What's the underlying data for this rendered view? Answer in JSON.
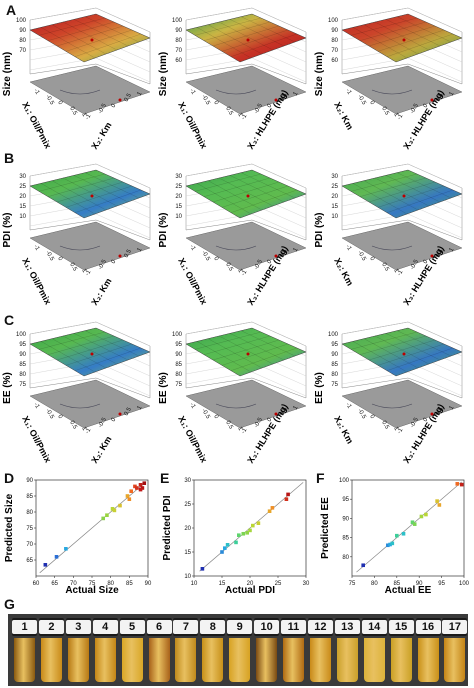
{
  "panels": {
    "A": "A",
    "B": "B",
    "C": "C",
    "D": "D",
    "E": "E",
    "F": "F",
    "G": "G"
  },
  "surfaces": [
    {
      "id": "a1",
      "response": "Size (nm)",
      "ylabel": "Size\n(nm)",
      "x1": "X₁: Oil/Pmix",
      "x2": "X₂: Km",
      "ticks_z": [
        "100",
        "90",
        "80",
        "70"
      ],
      "palette": "warm"
    },
    {
      "id": "a2",
      "response": "Size (nm)",
      "x1": "X₁: Oil/Pmix",
      "x2": "X₃: HLHPE (mg)",
      "ticks_z": [
        "100",
        "90",
        "80",
        "70",
        "60"
      ],
      "palette": "warm"
    },
    {
      "id": "a3",
      "response": "Size (nm)",
      "x1": "X₂: Km",
      "x2": "X₃: HLHPE (mg)",
      "ticks_z": [
        "100",
        "90",
        "80",
        "70",
        "60"
      ],
      "palette": "warm"
    },
    {
      "id": "b1",
      "response": "PDI (%)",
      "x1": "X₁: Oil/Pmix",
      "x2": "X₂: Km",
      "ticks_z": [
        "30",
        "25",
        "20",
        "15",
        "10"
      ],
      "palette": "cool"
    },
    {
      "id": "b2",
      "response": "PDI (%)",
      "x1": "X₁: Oil/Pmix",
      "x2": "X₃: HLHPE (mg)",
      "ticks_z": [
        "30",
        "25",
        "20",
        "15",
        "10"
      ],
      "palette": "cool"
    },
    {
      "id": "b3",
      "response": "PDI (%)",
      "x1": "X₂: Km",
      "x2": "X₃: HLHPE (mg)",
      "ticks_z": [
        "30",
        "25",
        "20",
        "15",
        "10"
      ],
      "palette": "cool"
    },
    {
      "id": "c1",
      "response": "EE (%)",
      "x1": "X₁: Oil/Pmix",
      "x2": "X₂: Km",
      "ticks_z": [
        "100",
        "95",
        "90",
        "85",
        "80",
        "75"
      ],
      "palette": "cool"
    },
    {
      "id": "c2",
      "response": "EE (%)",
      "x1": "X₁: Oil/Pmix",
      "x2": "X₃: HLHPE (mg)",
      "ticks_z": [
        "100",
        "95",
        "90",
        "85",
        "80",
        "75"
      ],
      "palette": "cool"
    },
    {
      "id": "c3",
      "response": "EE (%)",
      "x1": "X₂: Km",
      "x2": "X₃: HLHPE (mg)",
      "ticks_z": [
        "100",
        "95",
        "90",
        "85",
        "80",
        "75"
      ],
      "palette": "cool"
    }
  ],
  "axis_ticks": [
    "-1",
    "-0.5",
    "0",
    "0.5",
    "1"
  ],
  "chart_data": [
    {
      "type": "scatter",
      "xlabel": "Actual Size",
      "ylabel": "Predicted Size",
      "xlim": [
        60,
        90
      ],
      "ylim": [
        60,
        90
      ],
      "xticks": [
        "60",
        "65",
        "70",
        "75",
        "80",
        "85",
        "90"
      ],
      "yticks": [
        "65",
        "70",
        "75",
        "80",
        "85",
        "90"
      ],
      "points": [
        {
          "x": 62.5,
          "y": 63.5,
          "color": "#1f2fb0"
        },
        {
          "x": 65.5,
          "y": 66.0,
          "color": "#2a6fd6"
        },
        {
          "x": 68.0,
          "y": 68.5,
          "color": "#27a8e0"
        },
        {
          "x": 78.0,
          "y": 78.0,
          "color": "#8bd24a"
        },
        {
          "x": 79.0,
          "y": 79.0,
          "color": "#9ad43f"
        },
        {
          "x": 80.5,
          "y": 81.0,
          "color": "#b9d636"
        },
        {
          "x": 81.0,
          "y": 80.5,
          "color": "#c8d033"
        },
        {
          "x": 82.5,
          "y": 82.0,
          "color": "#d8c12f"
        },
        {
          "x": 84.5,
          "y": 85.0,
          "color": "#e8a62a"
        },
        {
          "x": 85.0,
          "y": 84.0,
          "color": "#ef8f26"
        },
        {
          "x": 85.5,
          "y": 86.5,
          "color": "#f06a22"
        },
        {
          "x": 86.5,
          "y": 88.0,
          "color": "#e2441f"
        },
        {
          "x": 87.0,
          "y": 87.5,
          "color": "#d3301c"
        },
        {
          "x": 88.0,
          "y": 88.5,
          "color": "#c42019"
        },
        {
          "x": 88.5,
          "y": 87.5,
          "color": "#b81616"
        },
        {
          "x": 89.0,
          "y": 89.0,
          "color": "#a30f12"
        },
        {
          "x": 88.0,
          "y": 87.0,
          "color": "#c01818"
        }
      ]
    },
    {
      "type": "scatter",
      "xlabel": "Actual PDI",
      "ylabel": "Predicted PDI",
      "xlim": [
        10,
        30
      ],
      "ylim": [
        10,
        30
      ],
      "xticks": [
        "10",
        "15",
        "20",
        "25",
        "30"
      ],
      "yticks": [
        "10",
        "15",
        "20",
        "25",
        "30"
      ],
      "points": [
        {
          "x": 11.5,
          "y": 11.5,
          "color": "#1f2fb0"
        },
        {
          "x": 15.0,
          "y": 15.0,
          "color": "#2a8ad8"
        },
        {
          "x": 15.5,
          "y": 15.8,
          "color": "#27a8e0"
        },
        {
          "x": 16.0,
          "y": 16.5,
          "color": "#2cc0c8"
        },
        {
          "x": 17.5,
          "y": 17.0,
          "color": "#3ccf9a"
        },
        {
          "x": 18.0,
          "y": 18.5,
          "color": "#5fd46e"
        },
        {
          "x": 18.8,
          "y": 18.8,
          "color": "#7bd553"
        },
        {
          "x": 19.5,
          "y": 19.0,
          "color": "#8fd548"
        },
        {
          "x": 20.0,
          "y": 19.5,
          "color": "#a6d63e"
        },
        {
          "x": 20.5,
          "y": 20.5,
          "color": "#b9d636"
        },
        {
          "x": 21.5,
          "y": 21.0,
          "color": "#c8d033"
        },
        {
          "x": 23.5,
          "y": 23.5,
          "color": "#e8a62a"
        },
        {
          "x": 24.0,
          "y": 24.2,
          "color": "#ef8f26"
        },
        {
          "x": 26.5,
          "y": 26.0,
          "color": "#d3301c"
        },
        {
          "x": 26.8,
          "y": 27.0,
          "color": "#b81616"
        }
      ]
    },
    {
      "type": "scatter",
      "xlabel": "Actual EE",
      "ylabel": "Predicted EE",
      "xlim": [
        75,
        100
      ],
      "ylim": [
        75,
        100
      ],
      "xticks": [
        "75",
        "80",
        "85",
        "90",
        "95",
        "100"
      ],
      "yticks": [
        "80",
        "85",
        "90",
        "95",
        "100"
      ],
      "points": [
        {
          "x": 77.5,
          "y": 77.8,
          "color": "#1f2fb0"
        },
        {
          "x": 83.0,
          "y": 83.0,
          "color": "#2a8ad8"
        },
        {
          "x": 83.5,
          "y": 83.2,
          "color": "#27a8e0"
        },
        {
          "x": 84.0,
          "y": 83.5,
          "color": "#2cc0c8"
        },
        {
          "x": 85.0,
          "y": 85.5,
          "color": "#3ccf9a"
        },
        {
          "x": 86.5,
          "y": 86.0,
          "color": "#2cc0c8"
        },
        {
          "x": 88.5,
          "y": 89.0,
          "color": "#5fd46e"
        },
        {
          "x": 89.0,
          "y": 88.5,
          "color": "#7bd553"
        },
        {
          "x": 90.5,
          "y": 90.5,
          "color": "#a6d63e"
        },
        {
          "x": 91.5,
          "y": 91.0,
          "color": "#b9d636"
        },
        {
          "x": 94.0,
          "y": 94.5,
          "color": "#d8c12f"
        },
        {
          "x": 94.5,
          "y": 93.5,
          "color": "#e8a62a"
        },
        {
          "x": 98.5,
          "y": 99.0,
          "color": "#f06a22"
        },
        {
          "x": 99.5,
          "y": 98.8,
          "color": "#c42019"
        }
      ]
    }
  ],
  "vials": [
    {
      "num": "1",
      "color": "#8a5a10"
    },
    {
      "num": "2",
      "color": "#c98a18"
    },
    {
      "num": "3",
      "color": "#b77914"
    },
    {
      "num": "4",
      "color": "#c48616"
    },
    {
      "num": "5",
      "color": "#d9a726"
    },
    {
      "num": "6",
      "color": "#a8621a"
    },
    {
      "num": "7",
      "color": "#c08a1c"
    },
    {
      "num": "8",
      "color": "#c79018"
    },
    {
      "num": "9",
      "color": "#d7a222"
    },
    {
      "num": "10",
      "color": "#7a4a12"
    },
    {
      "num": "11",
      "color": "#b06a12"
    },
    {
      "num": "12",
      "color": "#c98a18"
    },
    {
      "num": "13",
      "color": "#caa02a"
    },
    {
      "num": "14",
      "color": "#dcb33a"
    },
    {
      "num": "15",
      "color": "#caa024"
    },
    {
      "num": "16",
      "color": "#c99018"
    },
    {
      "num": "17",
      "color": "#c48416"
    }
  ]
}
